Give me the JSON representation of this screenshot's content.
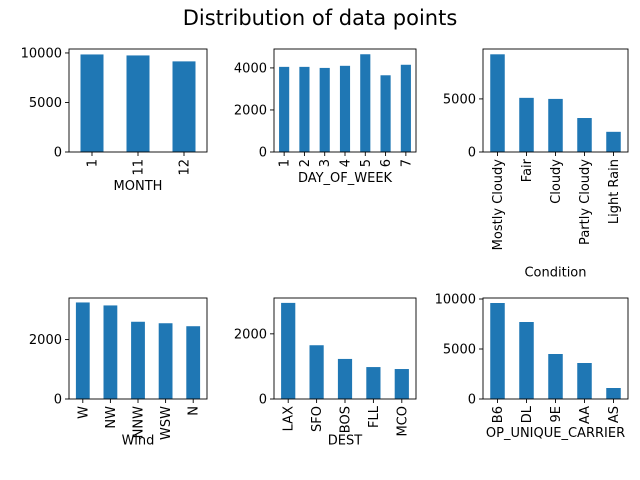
{
  "figure": {
    "title": "Distribution of data points",
    "bar_color": "#1f77b4"
  },
  "chart_data": [
    {
      "type": "bar",
      "xlabel": "MONTH",
      "ylabel": "",
      "categories": [
        "1",
        "11",
        "12"
      ],
      "values": [
        9850,
        9750,
        9150
      ],
      "ylim": [
        0,
        10400
      ],
      "yticks": [
        0,
        5000,
        10000
      ],
      "ytick_labels": [
        "0",
        "5000",
        "10000"
      ]
    },
    {
      "type": "bar",
      "xlabel": "DAY_OF_WEEK",
      "ylabel": "",
      "categories": [
        "1",
        "2",
        "3",
        "4",
        "5",
        "6",
        "7"
      ],
      "values": [
        4050,
        4050,
        4000,
        4100,
        4650,
        3650,
        4150
      ],
      "ylim": [
        0,
        4900
      ],
      "yticks": [
        0,
        2000,
        4000
      ],
      "ytick_labels": [
        "0",
        "2000",
        "4000"
      ]
    },
    {
      "type": "bar",
      "xlabel": "Condition",
      "ylabel": "",
      "categories": [
        "Mostly Cloudy",
        "Fair",
        "Cloudy",
        "Partly Cloudy",
        "Light Rain"
      ],
      "values": [
        9200,
        5100,
        5000,
        3200,
        1900
      ],
      "ylim": [
        0,
        9700
      ],
      "yticks": [
        0,
        5000
      ],
      "ytick_labels": [
        "0",
        "5000"
      ]
    },
    {
      "type": "bar",
      "xlabel": "Wind",
      "ylabel": "",
      "categories": [
        "W",
        "NW",
        "NNW",
        "WSW",
        "N"
      ],
      "values": [
        3250,
        3150,
        2600,
        2550,
        2450
      ],
      "ylim": [
        0,
        3400
      ],
      "yticks": [
        0,
        2000
      ],
      "ytick_labels": [
        "0",
        "2000"
      ]
    },
    {
      "type": "bar",
      "xlabel": "DEST",
      "ylabel": "",
      "categories": [
        "LAX",
        "SFO",
        "BOS",
        "FLL",
        "MCO"
      ],
      "values": [
        2950,
        1650,
        1230,
        980,
        920
      ],
      "ylim": [
        0,
        3100
      ],
      "yticks": [
        0,
        2000
      ],
      "ytick_labels": [
        "0",
        "2000"
      ]
    },
    {
      "type": "bar",
      "xlabel": "OP_UNIQUE_CARRIER",
      "ylabel": "",
      "categories": [
        "B6",
        "DL",
        "9E",
        "AA",
        "AS"
      ],
      "values": [
        9600,
        7700,
        4500,
        3600,
        1100
      ],
      "ylim": [
        0,
        10100
      ],
      "yticks": [
        0,
        5000,
        10000
      ],
      "ytick_labels": [
        "0",
        "5000",
        "10000"
      ]
    }
  ]
}
